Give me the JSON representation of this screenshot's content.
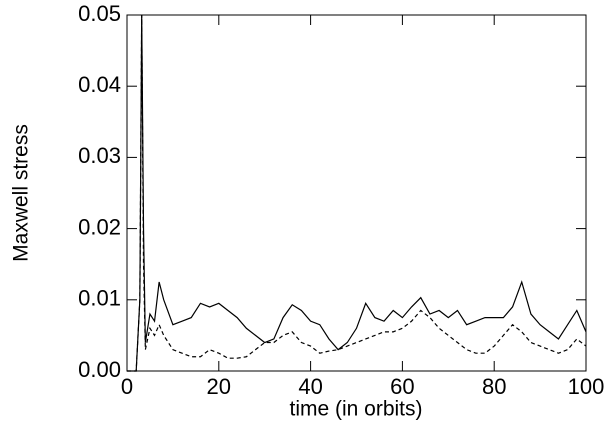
{
  "chart_data": {
    "type": "line",
    "xlabel": "time (in orbits)",
    "ylabel": "Maxwell stress",
    "x": [
      0,
      2,
      2.8,
      3.2,
      3.6,
      4,
      5,
      6,
      7,
      8,
      10,
      12,
      14,
      16,
      18,
      20,
      22,
      24,
      26,
      28,
      30,
      32,
      34,
      36,
      38,
      40,
      42,
      44,
      46,
      48,
      50,
      52,
      54,
      56,
      58,
      60,
      62,
      64,
      66,
      68,
      70,
      72,
      74,
      76,
      78,
      80,
      82,
      84,
      86,
      88,
      90,
      92,
      94,
      96,
      98,
      100
    ],
    "series": [
      {
        "color": "#000000",
        "linestyle": "solid",
        "values": [
          0,
          0,
          0.01,
          0.05,
          0.02,
          0.004,
          0.008,
          0.007,
          0.0125,
          0.01,
          0.0065,
          0.007,
          0.0075,
          0.0095,
          0.009,
          0.0095,
          0.0085,
          0.0075,
          0.006,
          0.005,
          0.004,
          0.0045,
          0.0075,
          0.0093,
          0.0085,
          0.007,
          0.0065,
          0.0045,
          0.003,
          0.004,
          0.006,
          0.0095,
          0.0075,
          0.007,
          0.0085,
          0.0075,
          0.009,
          0.0103,
          0.008,
          0.0085,
          0.0075,
          0.0085,
          0.0065,
          0.007,
          0.0075,
          0.0075,
          0.0075,
          0.009,
          0.0125,
          0.008,
          0.0065,
          0.0055,
          0.0045,
          0.0065,
          0.0085,
          0.0055
        ]
      },
      {
        "color": "#000000",
        "linestyle": "dashed",
        "values": [
          0,
          0,
          0.01,
          0.05,
          0.015,
          0.003,
          0.006,
          0.005,
          0.0065,
          0.005,
          0.003,
          0.0025,
          0.002,
          0.002,
          0.003,
          0.0025,
          0.0018,
          0.0018,
          0.002,
          0.003,
          0.004,
          0.004,
          0.005,
          0.0055,
          0.004,
          0.0035,
          0.0025,
          0.0028,
          0.003,
          0.0035,
          0.004,
          0.0045,
          0.005,
          0.0055,
          0.0055,
          0.006,
          0.007,
          0.0085,
          0.0075,
          0.006,
          0.005,
          0.004,
          0.003,
          0.0025,
          0.0025,
          0.0035,
          0.005,
          0.0065,
          0.0055,
          0.004,
          0.0035,
          0.003,
          0.0025,
          0.003,
          0.0045,
          0.0035
        ]
      }
    ],
    "xlim": [
      0,
      100
    ],
    "xticks": [
      0,
      20,
      40,
      60,
      80,
      100
    ],
    "ylim": [
      0,
      0.05
    ],
    "yticks": [
      {
        "value": 0,
        "label": "0.00"
      },
      0.01,
      0.02,
      0.03,
      0.04,
      0.05
    ]
  }
}
